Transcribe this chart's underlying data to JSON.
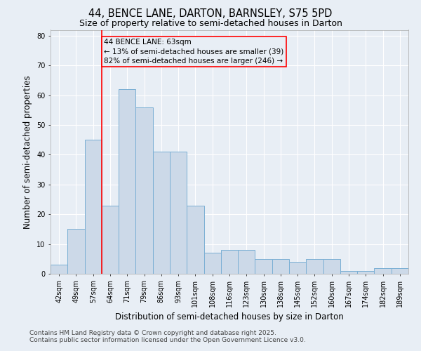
{
  "title_line1": "44, BENCE LANE, DARTON, BARNSLEY, S75 5PD",
  "title_line2": "Size of property relative to semi-detached houses in Darton",
  "xlabel": "Distribution of semi-detached houses by size in Darton",
  "ylabel": "Number of semi-detached properties",
  "bin_labels": [
    "42sqm",
    "49sqm",
    "57sqm",
    "64sqm",
    "71sqm",
    "79sqm",
    "86sqm",
    "93sqm",
    "101sqm",
    "108sqm",
    "116sqm",
    "123sqm",
    "130sqm",
    "138sqm",
    "145sqm",
    "152sqm",
    "160sqm",
    "167sqm",
    "174sqm",
    "182sqm",
    "189sqm"
  ],
  "bar_heights": [
    3,
    15,
    45,
    23,
    62,
    56,
    41,
    41,
    23,
    7,
    8,
    8,
    5,
    5,
    4,
    5,
    5,
    1,
    1,
    2,
    2
  ],
  "bar_color": "#ccd9e8",
  "bar_edge_color": "#7aafd4",
  "red_line_x": 2.5,
  "red_line_label": "44 BENCE LANE: 63sqm",
  "annotation_smaller": "← 13% of semi-detached houses are smaller (39)",
  "annotation_larger": "82% of semi-detached houses are larger (246) →",
  "ylim": [
    0,
    82
  ],
  "yticks": [
    0,
    10,
    20,
    30,
    40,
    50,
    60,
    70,
    80
  ],
  "background_color": "#e8eef5",
  "grid_color": "#ffffff",
  "footer_line1": "Contains HM Land Registry data © Crown copyright and database right 2025.",
  "footer_line2": "Contains public sector information licensed under the Open Government Licence v3.0.",
  "title_fontsize": 10.5,
  "subtitle_fontsize": 9,
  "axis_label_fontsize": 8.5,
  "tick_fontsize": 7,
  "annotation_fontsize": 7.5,
  "footer_fontsize": 6.5
}
